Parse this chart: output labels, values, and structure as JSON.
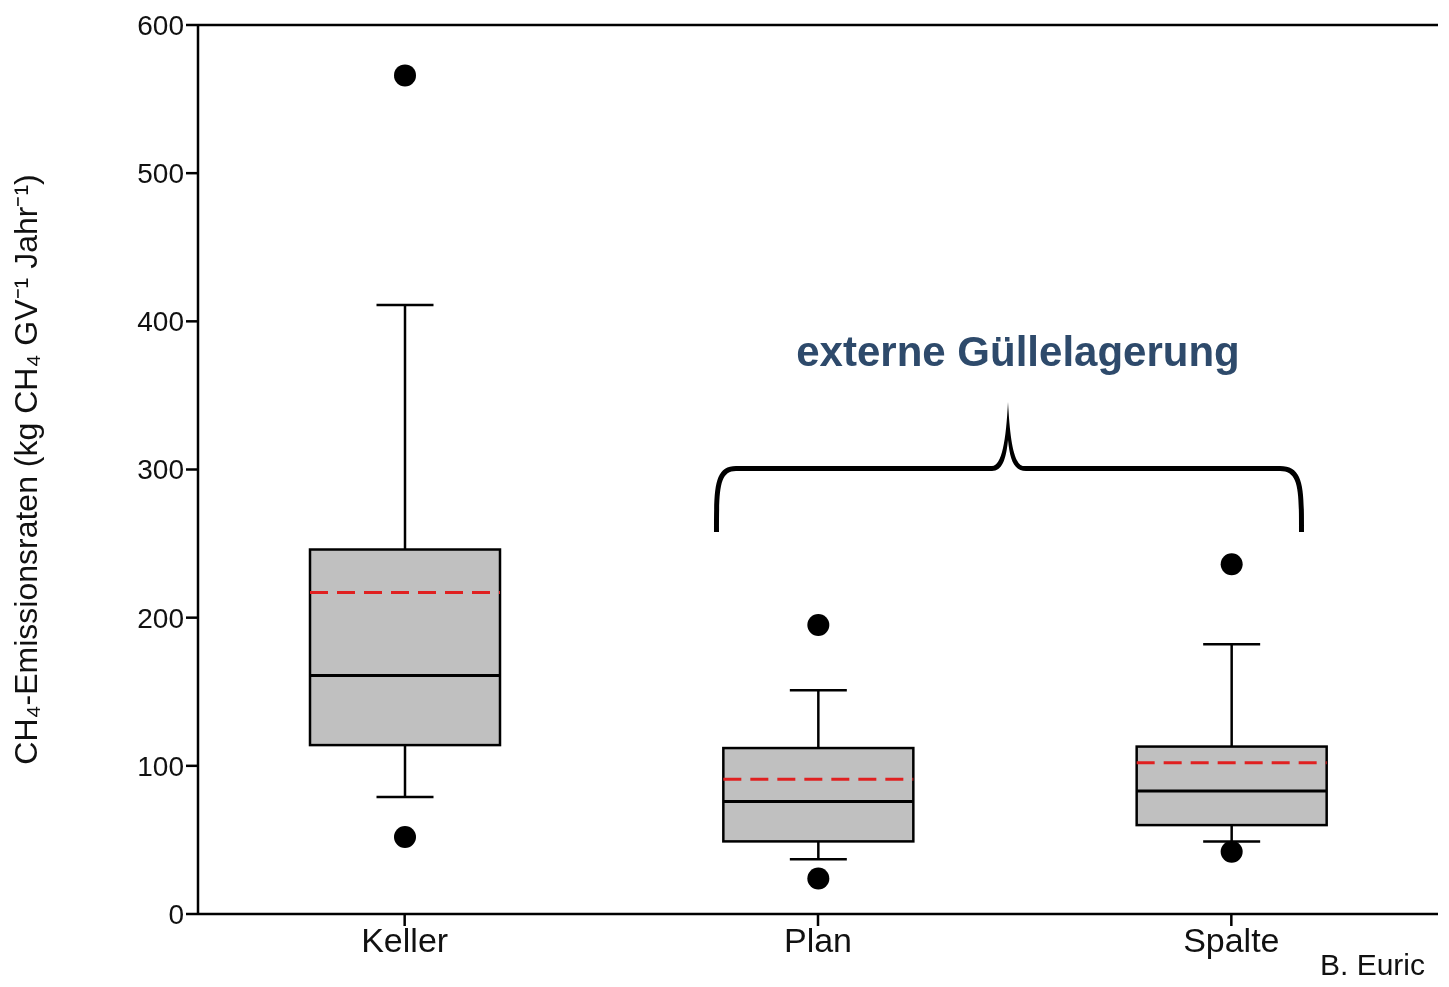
{
  "chart_data": {
    "type": "box",
    "ylabel": "CH₄-Emissionsraten (kg CH₄ GV⁻¹ Jahr⁻¹)",
    "categories": [
      "Keller",
      "Plan",
      "Spalte"
    ],
    "color": "#c0c0c0",
    "boxes": [
      {
        "low": 79,
        "q1": 114,
        "median": 161,
        "q3": 246,
        "high": 411,
        "mean": 217,
        "outliers": [
          566,
          52
        ]
      },
      {
        "low": 37,
        "q1": 49,
        "median": 76,
        "q3": 112,
        "high": 151,
        "mean": 91,
        "outliers": [
          195,
          24
        ]
      },
      {
        "low": 49,
        "q1": 60,
        "median": 83,
        "q3": 113,
        "high": 182,
        "mean": 102,
        "outliers": [
          236,
          42
        ]
      }
    ],
    "ylim": [
      0,
      600
    ],
    "yticks": [
      0,
      100,
      200,
      300,
      400,
      500,
      600
    ],
    "annotations": [
      "externe Güllelagerung",
      "B. Euric"
    ]
  }
}
